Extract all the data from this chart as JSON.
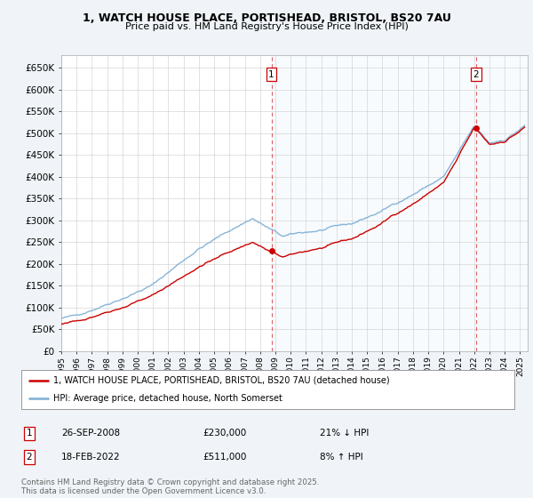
{
  "title_line1": "1, WATCH HOUSE PLACE, PORTISHEAD, BRISTOL, BS20 7AU",
  "title_line2": "Price paid vs. HM Land Registry's House Price Index (HPI)",
  "ylim": [
    0,
    680000
  ],
  "yticks": [
    0,
    50000,
    100000,
    150000,
    200000,
    250000,
    300000,
    350000,
    400000,
    450000,
    500000,
    550000,
    600000,
    650000
  ],
  "xlim_start": 1995.0,
  "xlim_end": 2025.5,
  "hpi_color": "#7aadd4",
  "price_color": "#cc0000",
  "marker_color": "#cc0000",
  "sale1_x": 2008.74,
  "sale1_y": 230000,
  "sale2_x": 2022.13,
  "sale2_y": 511000,
  "legend_line1": "1, WATCH HOUSE PLACE, PORTISHEAD, BRISTOL, BS20 7AU (detached house)",
  "legend_line2": "HPI: Average price, detached house, North Somerset",
  "annotation1_date": "26-SEP-2008",
  "annotation1_price": "£230,000",
  "annotation1_hpi": "21% ↓ HPI",
  "annotation2_date": "18-FEB-2022",
  "annotation2_price": "£511,000",
  "annotation2_hpi": "8% ↑ HPI",
  "footer": "Contains HM Land Registry data © Crown copyright and database right 2025.\nThis data is licensed under the Open Government Licence v3.0.",
  "background_color": "#f0f4f8",
  "plot_bg_color": "#ffffff",
  "grid_color": "#cccccc",
  "shade_color": "#d0e8f8"
}
